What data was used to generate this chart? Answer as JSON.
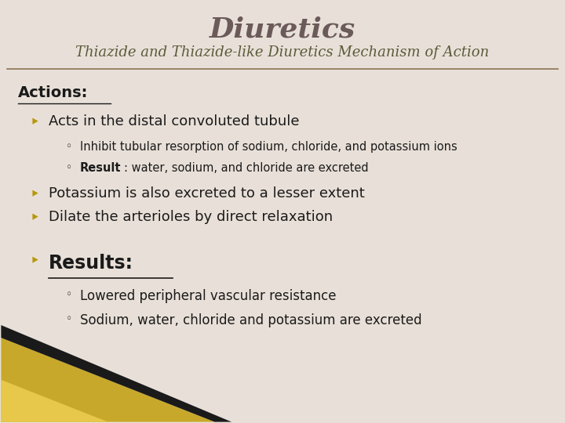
{
  "title": "Diuretics",
  "subtitle": "Thiazide and Thiazide-like Diuretics Mechanism of Action",
  "bg_color": "#e8e0d8",
  "title_color": "#6b5a5a",
  "subtitle_color": "#5a5a3a",
  "text_color": "#1a1a1a",
  "bullet_color": "#b8960c",
  "actions_label": "Actions:",
  "results_label": "Results:",
  "bullet1": "Acts in the distal convoluted tubule",
  "sub1a": "Inhibit tubular resorption of sodium, chloride, and potassium ions",
  "sub1b_bold": "Result",
  "sub1b_rest": ": water, sodium, and chloride are excreted",
  "bullet2": "Potassium is also excreted to a lesser extent",
  "bullet3": "Dilate the arterioles by direct relaxation",
  "res_sub1": "Lowered peripheral vascular resistance",
  "res_sub2": "Sodium, water, chloride and potassium are excreted",
  "gold_color": "#c8a82a",
  "gold_dark": "#1a1a1a",
  "gold_highlight": "#e8c84a",
  "underline_color": "#8b7355"
}
